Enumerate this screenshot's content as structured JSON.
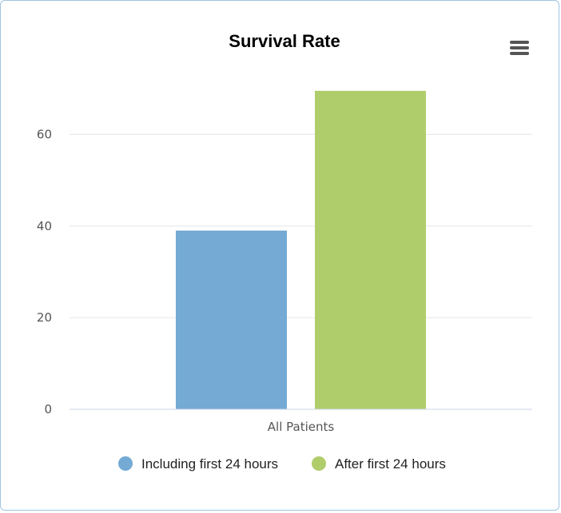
{
  "chart": {
    "title": "Survival Rate",
    "menu_icon": "hamburger-menu-icon"
  },
  "chart_data": {
    "type": "bar",
    "title": "Survival Rate",
    "xlabel": "",
    "ylabel": "",
    "categories": [
      "All Patients"
    ],
    "series": [
      {
        "name": "Including first 24 hours",
        "values": [
          39
        ],
        "color": "#74aad4"
      },
      {
        "name": "After first 24 hours",
        "values": [
          69.5
        ],
        "color": "#b0cd6c"
      }
    ],
    "ylim": [
      0,
      70
    ],
    "yticks": [
      0,
      20,
      40,
      60
    ],
    "grid": true,
    "legend": "bottom-center"
  }
}
